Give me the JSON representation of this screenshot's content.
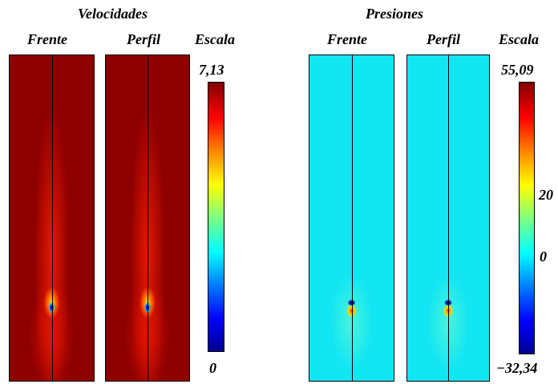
{
  "velocidades": {
    "title": "Velocidades",
    "views": [
      "Frente",
      "Perfil"
    ],
    "scale_label": "Escala",
    "scale_max": "7,13",
    "scale_min": "0"
  },
  "presiones": {
    "title": "Presiones",
    "views": [
      "Frente",
      "Perfil"
    ],
    "scale_label": "Escala",
    "scale_max": "55,09",
    "scale_mid_high": "20",
    "scale_mid": "0",
    "scale_min": "−32,34"
  },
  "colormap": [
    "#00008f",
    "#0000ff",
    "#0080ff",
    "#00ffff",
    "#80ff80",
    "#ffff00",
    "#ff8000",
    "#ff0000",
    "#800000"
  ]
}
